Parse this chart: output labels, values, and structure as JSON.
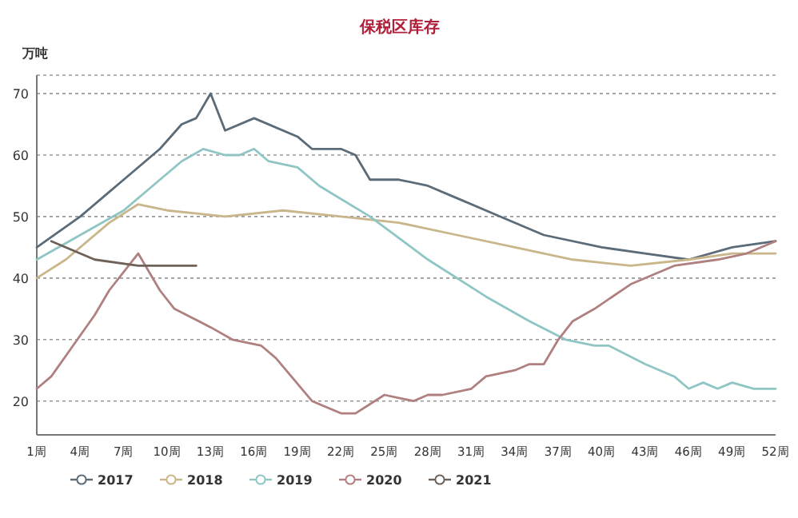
{
  "chart_data": {
    "type": "line",
    "title": "保税区库存",
    "ylabel": "万吨",
    "xlim": [
      1,
      52
    ],
    "ylim": [
      14.5,
      73
    ],
    "xticks": [
      {
        "value": 1,
        "label": "1周"
      },
      {
        "value": 4,
        "label": "4周"
      },
      {
        "value": 7,
        "label": "7周"
      },
      {
        "value": 10,
        "label": "10周"
      },
      {
        "value": 13,
        "label": "13周"
      },
      {
        "value": 16,
        "label": "16周"
      },
      {
        "value": 19,
        "label": "19周"
      },
      {
        "value": 22,
        "label": "22周"
      },
      {
        "value": 25,
        "label": "25周"
      },
      {
        "value": 28,
        "label": "28周"
      },
      {
        "value": 31,
        "label": "31周"
      },
      {
        "value": 34,
        "label": "34周"
      },
      {
        "value": 37,
        "label": "37周"
      },
      {
        "value": 40,
        "label": "40周"
      },
      {
        "value": 43,
        "label": "43周"
      },
      {
        "value": 46,
        "label": "46周"
      },
      {
        "value": 49,
        "label": "49周"
      },
      {
        "value": 52,
        "label": "52周"
      }
    ],
    "yticks": [
      20,
      30,
      40,
      50,
      60,
      70
    ],
    "grid": "y",
    "legend": "bottom",
    "series": [
      {
        "name": "2017",
        "color": "#5b6b78",
        "x": [
          1,
          4,
          6,
          7,
          9.5,
          11,
          12,
          13,
          14,
          16,
          19,
          20,
          21,
          22,
          23,
          24,
          26,
          28,
          30,
          33,
          36,
          40,
          43,
          46,
          49,
          52
        ],
        "values": [
          45,
          50,
          54,
          56,
          61,
          65,
          66,
          70,
          64,
          66,
          63,
          61,
          61,
          61,
          60,
          56,
          56,
          55,
          53,
          50,
          47,
          45,
          44,
          43,
          45,
          46
        ]
      },
      {
        "name": "2018",
        "color": "#c9b68a",
        "x": [
          1,
          3,
          6,
          8,
          10,
          14,
          18,
          22,
          26,
          30,
          34,
          38,
          42,
          46,
          49,
          52
        ],
        "values": [
          40,
          43,
          49,
          52,
          51,
          50,
          51,
          50,
          49,
          47,
          45,
          43,
          42,
          43,
          44,
          44
        ]
      },
      {
        "name": "2019",
        "color": "#8fc6c4",
        "x": [
          1,
          4,
          7,
          9,
          11,
          12.5,
          14,
          15,
          16,
          17,
          19,
          20.5,
          24,
          28,
          32,
          35,
          37.5,
          39.5,
          40.5,
          43,
          45,
          46,
          47,
          48,
          49,
          50.5,
          52
        ],
        "values": [
          43,
          47,
          51,
          55,
          59,
          61,
          60,
          60,
          61,
          59,
          58,
          55,
          50,
          43,
          37,
          33,
          30,
          29,
          29,
          26,
          24,
          22,
          23,
          22,
          23,
          22,
          22
        ]
      },
      {
        "name": "2020",
        "color": "#b08080",
        "x": [
          1,
          2,
          3.5,
          5,
          6,
          8,
          9.5,
          10.5,
          13,
          14.5,
          16.5,
          17.5,
          20,
          22,
          23,
          25,
          27,
          28,
          29,
          31,
          32,
          34,
          35,
          36,
          37,
          38,
          39.5,
          42,
          45,
          48,
          50,
          52
        ],
        "values": [
          22,
          24,
          29,
          34,
          38,
          44,
          38,
          35,
          32,
          30,
          29,
          27,
          20,
          18,
          18,
          21,
          20,
          21,
          21,
          22,
          24,
          25,
          26,
          26,
          30,
          33,
          35,
          39,
          42,
          43,
          44,
          46
        ]
      },
      {
        "name": "2021",
        "color": "#6e6258",
        "x": [
          2,
          5,
          8,
          12
        ],
        "values": [
          46,
          43,
          42,
          42
        ]
      }
    ]
  }
}
